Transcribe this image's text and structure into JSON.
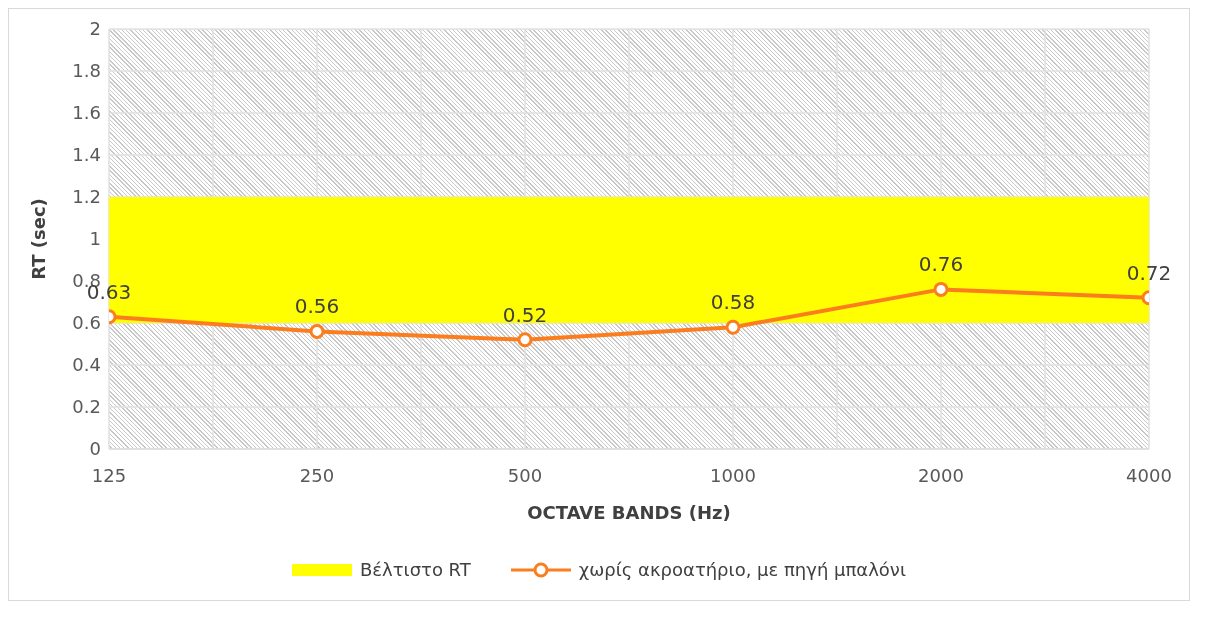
{
  "chart_data": {
    "type": "line",
    "xlabel": "OCTAVE BANDS (Hz)",
    "ylabel": "RT (sec)",
    "categories": [
      "125",
      "250",
      "500",
      "1000",
      "2000",
      "4000"
    ],
    "series": [
      {
        "name": "χωρίς ακροατήριο, με πηγή μπαλόνι",
        "color": "#fb7d1e",
        "values": [
          0.63,
          0.56,
          0.52,
          0.58,
          0.76,
          0.72
        ]
      }
    ],
    "bands": [
      {
        "axis": "y",
        "from": 0.6,
        "to": 1.2,
        "label": "Βέλτιστο RT",
        "color": "#ffff00"
      }
    ],
    "ylim": [
      0,
      2
    ],
    "yticks": [
      0,
      0.2,
      0.4,
      0.6,
      0.8,
      1,
      1.2,
      1.4,
      1.6,
      1.8,
      2
    ],
    "grid": true,
    "legend": "bottom",
    "marker": "circle",
    "data_labels": true
  }
}
